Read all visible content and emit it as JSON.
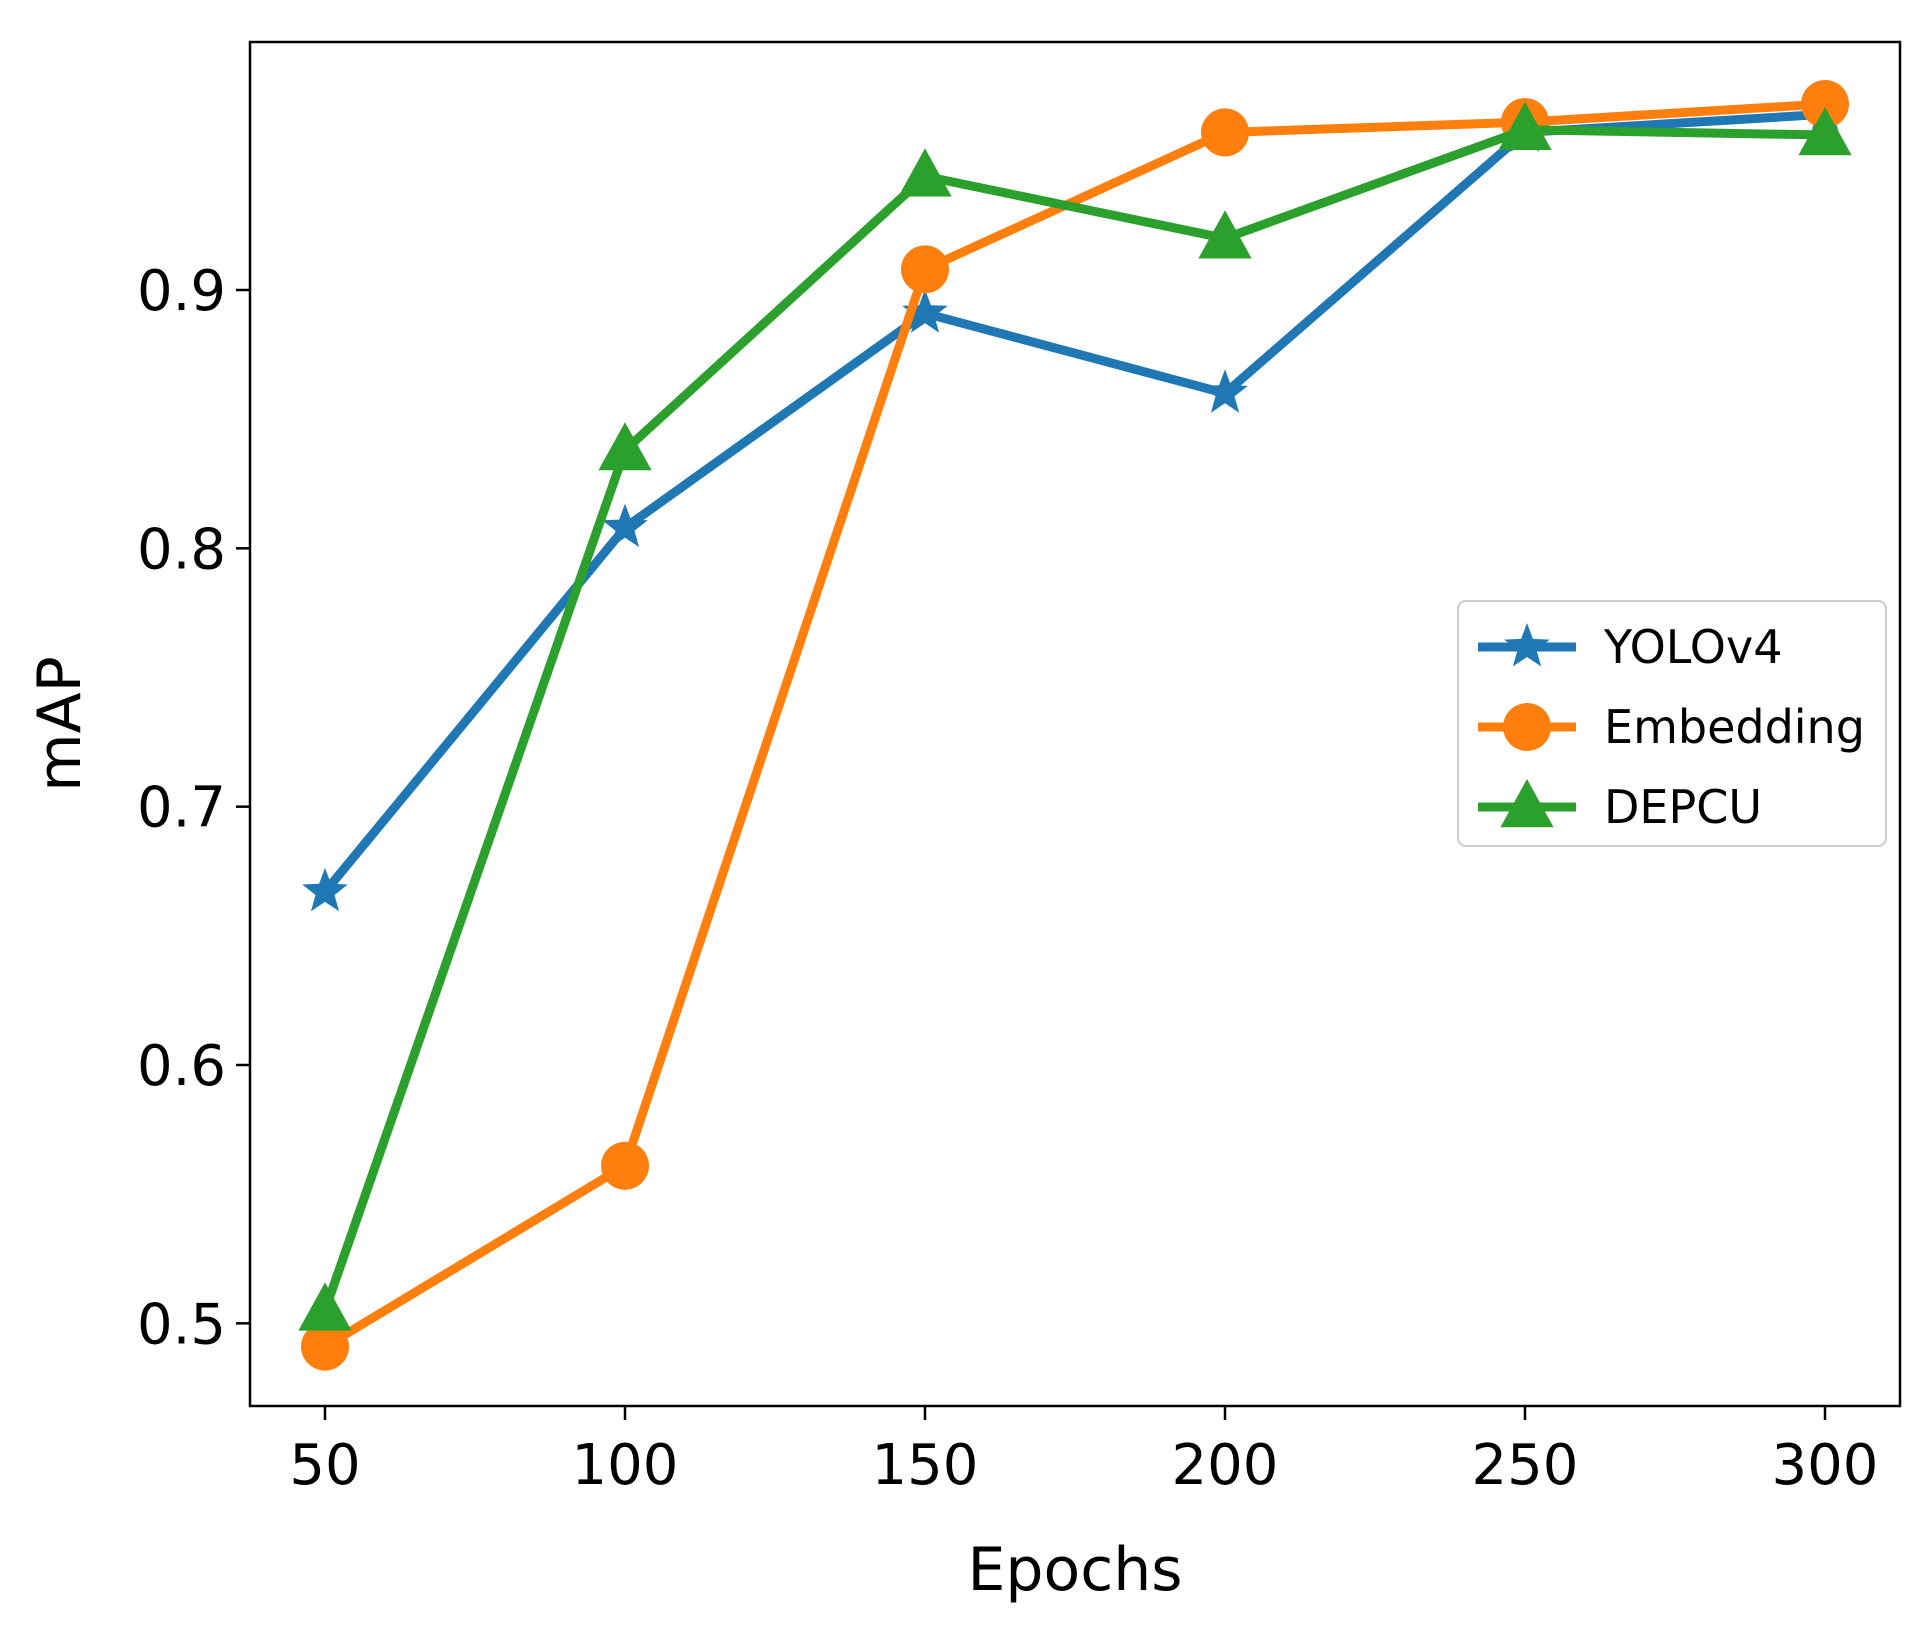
{
  "chart_data": {
    "type": "line",
    "title": "",
    "xlabel": "Epochs",
    "ylabel": "mAP",
    "x": [
      50,
      100,
      150,
      200,
      250,
      300
    ],
    "xticks": [
      50,
      100,
      150,
      200,
      250,
      300
    ],
    "yticks": [
      0.5,
      0.6,
      0.7,
      0.8,
      0.9
    ],
    "xlim": [
      37.5,
      312.5
    ],
    "ylim": [
      0.468,
      0.996
    ],
    "grid": false,
    "legend_position": "center-right",
    "series": [
      {
        "name": "YOLOv4",
        "color": "#1f77b4",
        "marker": "star",
        "values": [
          0.667,
          0.808,
          0.891,
          0.86,
          0.961,
          0.968
        ]
      },
      {
        "name": "Embedding",
        "color": "#ff7f0e",
        "marker": "circle",
        "values": [
          0.491,
          0.561,
          0.908,
          0.961,
          0.965,
          0.972
        ]
      },
      {
        "name": "DEPCU",
        "color": "#2ca02c",
        "marker": "triangle",
        "values": [
          0.505,
          0.838,
          0.944,
          0.92,
          0.962,
          0.96
        ]
      }
    ]
  }
}
